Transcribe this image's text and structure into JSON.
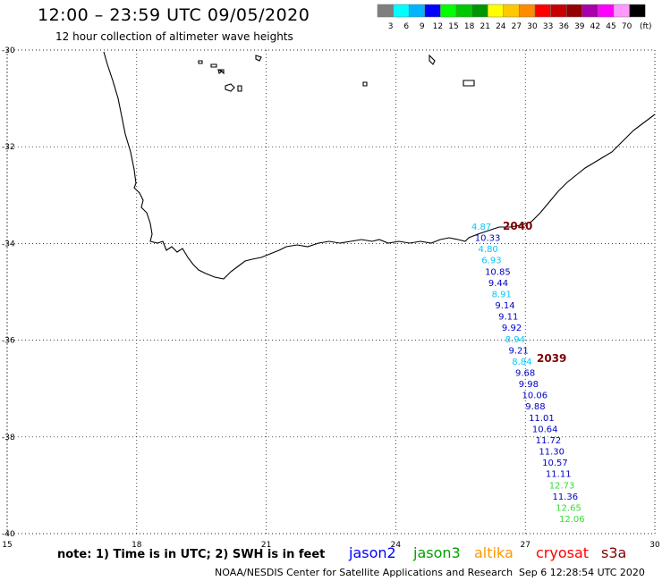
{
  "header": {
    "title": "12:00 – 23:59 UTC 09/05/2020",
    "subtitle": "12 hour collection of altimeter wave heights"
  },
  "legend": {
    "unit": "(ft)",
    "bins": [
      {
        "label": "3",
        "color": "#7f7f7f"
      },
      {
        "label": "6",
        "color": "#00ffff"
      },
      {
        "label": "9",
        "color": "#00b4ff"
      },
      {
        "label": "12",
        "color": "#0000ff"
      },
      {
        "label": "15",
        "color": "#00ff00"
      },
      {
        "label": "18",
        "color": "#00c800"
      },
      {
        "label": "21",
        "color": "#009600"
      },
      {
        "label": "24",
        "color": "#ffff00"
      },
      {
        "label": "27",
        "color": "#ffc800"
      },
      {
        "label": "30",
        "color": "#ff8c00"
      },
      {
        "label": "33",
        "color": "#ff0000"
      },
      {
        "label": "36",
        "color": "#c80000"
      },
      {
        "label": "39",
        "color": "#960000"
      },
      {
        "label": "42",
        "color": "#aa00aa"
      },
      {
        "label": "45",
        "color": "#ff00ff"
      },
      {
        "label": "70",
        "color": "#ff99ff"
      },
      {
        "label": "",
        "color": "#000000"
      }
    ]
  },
  "map": {
    "lon_range": [
      15,
      30
    ],
    "lat_range": [
      -30,
      -40
    ],
    "lon_ticks": [
      "15",
      "18",
      "21",
      "24",
      "27",
      "30"
    ],
    "lat_ticks": [
      "-30",
      "-32",
      "-34",
      "-36",
      "-38",
      "-40"
    ],
    "grid": "dotted",
    "track_labels": [
      {
        "text": "2040",
        "color": "#800000"
      },
      {
        "text": "2039",
        "color": "#800000"
      }
    ],
    "observations": [
      {
        "value": "4.87",
        "color": "#00c8ff"
      },
      {
        "value": "10.33",
        "color": "#0000c8"
      },
      {
        "value": "4.80",
        "color": "#00c8ff"
      },
      {
        "value": "6.93",
        "color": "#00c8ff"
      },
      {
        "value": "10.85",
        "color": "#0000c8"
      },
      {
        "value": "9.44",
        "color": "#0000c8"
      },
      {
        "value": "8.91",
        "color": "#00c8ff"
      },
      {
        "value": "9.14",
        "color": "#0000c8"
      },
      {
        "value": "9.11",
        "color": "#0000c8"
      },
      {
        "value": "9.92",
        "color": "#0000c8"
      },
      {
        "value": "8.94",
        "color": "#00c8ff"
      },
      {
        "value": "9.21",
        "color": "#0000c8"
      },
      {
        "value": "8.84",
        "color": "#00c8ff"
      },
      {
        "value": "9.68",
        "color": "#0000c8"
      },
      {
        "value": "9.98",
        "color": "#0000c8"
      },
      {
        "value": "10.06",
        "color": "#0000c8"
      },
      {
        "value": "9.88",
        "color": "#0000c8"
      },
      {
        "value": "11.01",
        "color": "#0000c8"
      },
      {
        "value": "10.64",
        "color": "#0000c8"
      },
      {
        "value": "11.72",
        "color": "#0000c8"
      },
      {
        "value": "11.30",
        "color": "#0000c8"
      },
      {
        "value": "10.57",
        "color": "#0000c8"
      },
      {
        "value": "11.11",
        "color": "#0000c8"
      },
      {
        "value": "12.73",
        "color": "#32dc32"
      },
      {
        "value": "11.36",
        "color": "#0000c8"
      },
      {
        "value": "12.65",
        "color": "#32dc32"
      },
      {
        "value": "12.06",
        "color": "#32dc32"
      }
    ]
  },
  "footer": {
    "note": "note:  1) Time is in UTC;  2) SWH is in feet",
    "satellites": [
      {
        "name": "jason2",
        "color": "#0000ff"
      },
      {
        "name": "jason3",
        "color": "#00a000"
      },
      {
        "name": "altika",
        "color": "#ff9900"
      },
      {
        "name": "cryosat",
        "color": "#ff0000"
      },
      {
        "name": "s3a",
        "color": "#800000"
      }
    ],
    "credit": "NOAA/NESDIS Center for Satellite Applications and Research",
    "timestamp": "Sep  6 12:28:54 UTC 2020"
  }
}
